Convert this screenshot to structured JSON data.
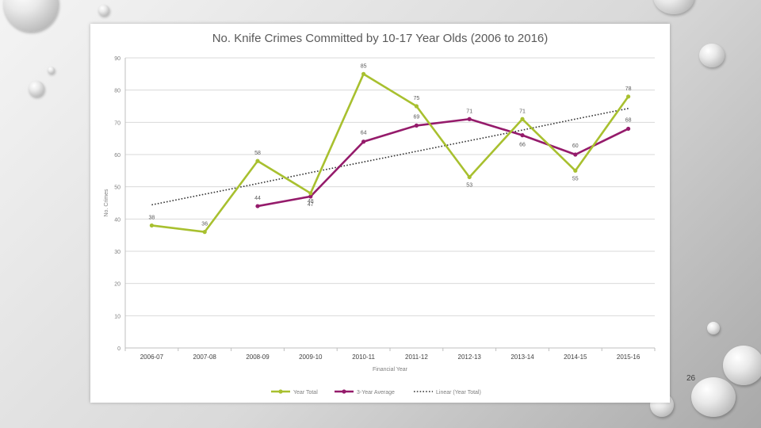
{
  "slide": {
    "number": "26"
  },
  "colors": {
    "year_total": "#a8c02f",
    "three_year_avg": "#951b6b",
    "trend": "#333333",
    "axis_text": "#7f7f7f",
    "grid": "#d9d9d9"
  },
  "chart_data": {
    "type": "line",
    "title": "No. Knife Crimes Committed by 10-17 Year Olds (2006 to 2016)",
    "xlabel": "Financial Year",
    "ylabel": "No. Crimes",
    "ylim": [
      0,
      90
    ],
    "yticks": [
      0,
      10,
      20,
      30,
      40,
      50,
      60,
      70,
      80,
      90
    ],
    "grid": true,
    "legend_position": "bottom",
    "categories": [
      "2006-07",
      "2007-08",
      "2008-09",
      "2009-10",
      "2010-11",
      "2011-12",
      "2012-13",
      "2013-14",
      "2014-15",
      "2015-16"
    ],
    "series": [
      {
        "name": "Year Total",
        "values": [
          38,
          36,
          58,
          48,
          85,
          75,
          53,
          71,
          55,
          78
        ],
        "labels": [
          "38",
          "36",
          "58",
          "48",
          "85",
          "75",
          "53",
          "71",
          "55",
          "78"
        ]
      },
      {
        "name": "3-Year Average",
        "values": [
          null,
          null,
          44,
          47,
          64,
          69,
          71,
          66,
          60,
          68
        ],
        "labels": [
          "",
          "",
          "44",
          "47",
          "64",
          "69",
          "71",
          "66",
          "60",
          "68"
        ]
      },
      {
        "name": "Linear (Year Total)",
        "values": [
          44.4,
          47.7,
          51.0,
          54.4,
          57.7,
          61.0,
          64.3,
          67.6,
          71.0,
          74.3
        ],
        "style": "dotted"
      }
    ]
  }
}
